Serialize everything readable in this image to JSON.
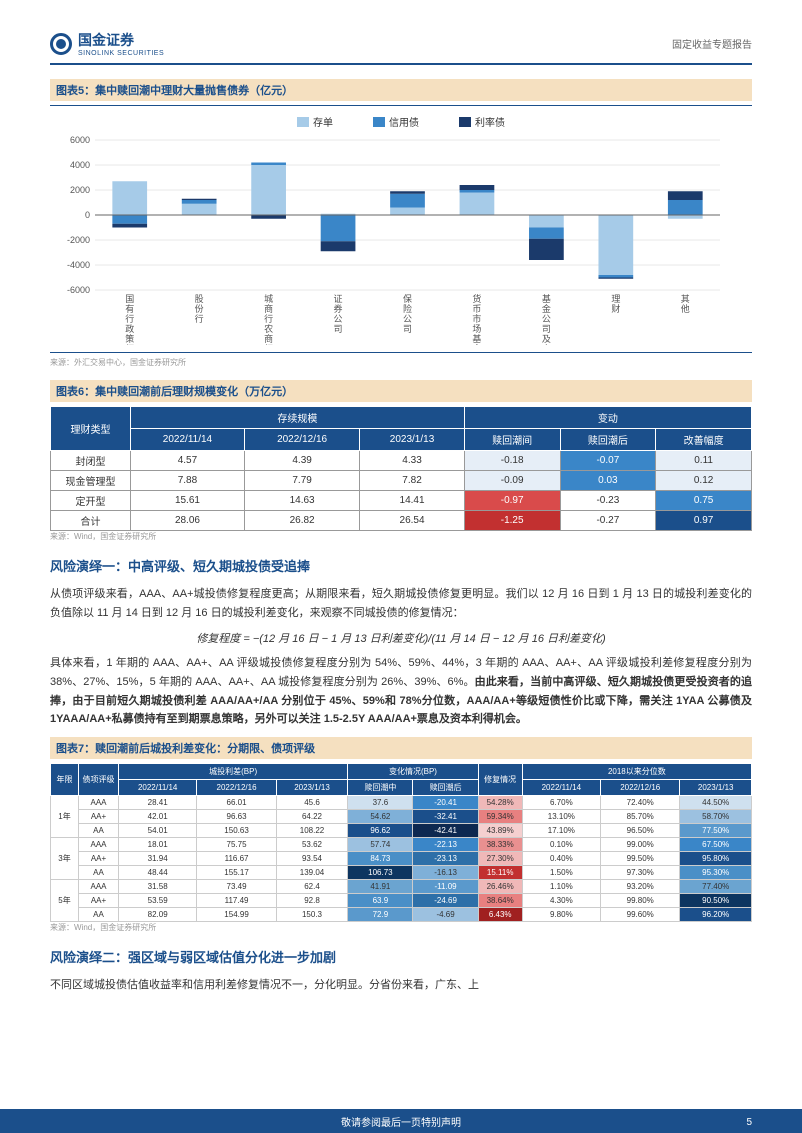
{
  "header": {
    "logo_cn": "国金证券",
    "logo_en": "SINOLINK SECURITIES",
    "report_type": "固定收益专题报告"
  },
  "fig5": {
    "title": "图表5：集中赎回潮中理财大量抛售债券（亿元）",
    "source": "来源：外汇交易中心，国金证券研究所",
    "legend": [
      {
        "label": "存单",
        "color": "#a6cbe8"
      },
      {
        "label": "信用债",
        "color": "#3a86c8"
      },
      {
        "label": "利率债",
        "color": "#1b3a6b"
      }
    ],
    "categories": [
      "国有行政策行",
      "股份行",
      "城商行农商行",
      "证券公司",
      "保险公司",
      "货币市场基金",
      "基金公司及产品",
      "理财",
      "其他"
    ],
    "series": {
      "存单": [
        2700,
        900,
        4000,
        100,
        600,
        1800,
        -1000,
        -4800,
        -300
      ],
      "信用债": [
        -700,
        300,
        200,
        -2100,
        1100,
        200,
        -900,
        -200,
        1200
      ],
      "利率债": [
        -300,
        100,
        -300,
        -800,
        200,
        400,
        -1700,
        -100,
        700
      ]
    },
    "ylim": [
      -6000,
      6000
    ],
    "ytick_step": 2000,
    "bar_width": 0.5,
    "grid_color": "#d0d0d0",
    "axis_color": "#666"
  },
  "fig6": {
    "title": "图表6：集中赎回潮前后理财规模变化（万亿元）",
    "source": "来源：Wind，国金证券研究所",
    "group_headers": [
      "理财类型",
      "存续规模",
      "变动"
    ],
    "sub_headers": [
      "2022/11/14",
      "2022/12/16",
      "2023/1/13",
      "赎回潮间",
      "赎回潮后",
      "改善幅度"
    ],
    "rows": [
      {
        "label": "封闭型",
        "v": [
          "4.57",
          "4.39",
          "4.33",
          "-0.18",
          "-0.07",
          "0.11"
        ],
        "colors": [
          "",
          "",
          "",
          "#e6eef7",
          "#3a86c8",
          "#e6eef7"
        ]
      },
      {
        "label": "现金管理型",
        "v": [
          "7.88",
          "7.79",
          "7.82",
          "-0.09",
          "0.03",
          "0.12"
        ],
        "colors": [
          "",
          "",
          "",
          "#e6eef7",
          "#3a86c8",
          "#e6eef7"
        ]
      },
      {
        "label": "定开型",
        "v": [
          "15.61",
          "14.63",
          "14.41",
          "-0.97",
          "-0.23",
          "0.75"
        ],
        "colors": [
          "",
          "",
          "",
          "#d94b4b",
          "",
          "#3a86c8"
        ]
      },
      {
        "label": "合计",
        "v": [
          "28.06",
          "26.82",
          "26.54",
          "-1.25",
          "-0.27",
          "0.97"
        ],
        "colors": [
          "",
          "",
          "",
          "#c23030",
          "",
          "#1b4f8b"
        ]
      }
    ]
  },
  "section1": {
    "heading": "风险演绎一：中高评级、短久期城投债受追捧",
    "p1": "从债项评级来看，AAA、AA+城投债修复程度更高；从期限来看，短久期城投债修复更明显。我们以 12 月 16 日到 1 月 13 日的城投利差变化的负值除以 11 月 14 日到 12 月 16 日的城投利差变化，来观察不同城投债的修复情况：",
    "formula": "修复程度 = −(12 月 16 日 − 1 月 13 日利差变化)/(11 月 14 日 − 12 月 16 日利差变化)",
    "p2_a": "具体来看，1 年期的 AAA、AA+、AA 评级城投债修复程度分别为 54%、59%、44%，3 年期的 AAA、AA+、AA 评级城投利差修复程度分别为 38%、27%、15%，5 年期的 AAA、AA+、AA 城投修复程度分别为 26%、39%、6%。",
    "p2_b": "由此来看，当前中高评级、短久期城投债更受投资者的追捧，由于目前短久期城投债利差 AAA/AA+/AA 分别位于 45%、59%和 78%分位数，AAA/AA+等级短债性价比或下降，需关注 1YAA 公募债及 1YAAA/AA+私募债持有至到期票息策略，另外可以关注 1.5-2.5Y AAA/AA+票息及资本利得机会。"
  },
  "fig7": {
    "title": "图表7：赎回潮前后城投利差变化：分期限、债项评级",
    "source": "来源：Wind，国金证券研究所",
    "top_headers": [
      "年限",
      "债项评级",
      "城投利差(BP)",
      "变化情况(BP)",
      "修复情况",
      "2018以来分位数"
    ],
    "sub_headers": [
      "2022/11/14",
      "2022/12/16",
      "2023/1/13",
      "赎回潮中",
      "赎回潮后",
      "",
      "2022/11/14",
      "2022/12/16",
      "2023/1/13"
    ],
    "rows": [
      {
        "yr": "1年",
        "rating": "AAA",
        "d": [
          "28.41",
          "66.01",
          "45.6",
          "37.6",
          "-20.41",
          "54.28%",
          "6.70%",
          "72.40%",
          "44.50%"
        ]
      },
      {
        "yr": "",
        "rating": "AA+",
        "d": [
          "42.01",
          "96.63",
          "64.22",
          "54.62",
          "-32.41",
          "59.34%",
          "13.10%",
          "85.70%",
          "58.70%"
        ]
      },
      {
        "yr": "",
        "rating": "AA",
        "d": [
          "54.01",
          "150.63",
          "108.22",
          "96.62",
          "-42.41",
          "43.89%",
          "17.10%",
          "96.50%",
          "77.50%"
        ]
      },
      {
        "yr": "3年",
        "rating": "AAA",
        "d": [
          "18.01",
          "75.75",
          "53.62",
          "57.74",
          "-22.13",
          "38.33%",
          "0.10%",
          "99.00%",
          "67.50%"
        ]
      },
      {
        "yr": "",
        "rating": "AA+",
        "d": [
          "31.94",
          "116.67",
          "93.54",
          "84.73",
          "-23.13",
          "27.30%",
          "0.40%",
          "99.50%",
          "95.80%"
        ]
      },
      {
        "yr": "",
        "rating": "AA",
        "d": [
          "48.44",
          "155.17",
          "139.04",
          "106.73",
          "-16.13",
          "15.11%",
          "1.50%",
          "97.30%",
          "95.30%"
        ]
      },
      {
        "yr": "5年",
        "rating": "AAA",
        "d": [
          "31.58",
          "73.49",
          "62.4",
          "41.91",
          "-11.09",
          "26.46%",
          "1.10%",
          "93.20%",
          "77.40%"
        ]
      },
      {
        "yr": "",
        "rating": "AA+",
        "d": [
          "53.59",
          "117.49",
          "92.8",
          "63.9",
          "-24.69",
          "38.64%",
          "4.30%",
          "99.80%",
          "90.50%"
        ]
      },
      {
        "yr": "",
        "rating": "AA",
        "d": [
          "82.09",
          "154.99",
          "150.3",
          "72.9",
          "-4.69",
          "6.43%",
          "9.80%",
          "99.60%",
          "96.20%"
        ]
      }
    ],
    "cell_colors": {
      "col3": [
        "#cfe0ef",
        "#7fb0d8",
        "#1b4f8b",
        "#9cc1e0",
        "#4a8fc7",
        "#0d3560",
        "#6ba4d0",
        "#4a8fc7",
        "#5a99cc"
      ],
      "col4": [
        "#3a86c8",
        "#1b4f8b",
        "#0d2850",
        "#3a86c8",
        "#2d6fa8",
        "#7fb0d8",
        "#5a99cc",
        "#2d6fa8",
        "#9cc1e0"
      ],
      "col5": [
        "#f0b8b8",
        "#e88080",
        "#f5cfcf",
        "#e99090",
        "#f0b8b8",
        "#c23030",
        "#f0b8b8",
        "#e88080",
        "#a02020"
      ],
      "col7": [
        "",
        "",
        "",
        "",
        "",
        "",
        "",
        "",
        ""
      ],
      "col8": [
        "#cfe0ef",
        "#9cc1e0",
        "#5a99cc",
        "#3a86c8",
        "#1b4f8b",
        "#4a8fc7",
        "#6ba4d0",
        "#0d3560",
        "#1b4f8b"
      ]
    }
  },
  "section2": {
    "heading": "风险演绎二：强区域与弱区域估值分化进一步加剧",
    "p1": "不同区域城投债估值收益率和信用利差修复情况不一，分化明显。分省份来看，广东、上"
  },
  "footer": {
    "disclaimer": "敬请参阅最后一页特别声明",
    "page_num": "5"
  }
}
